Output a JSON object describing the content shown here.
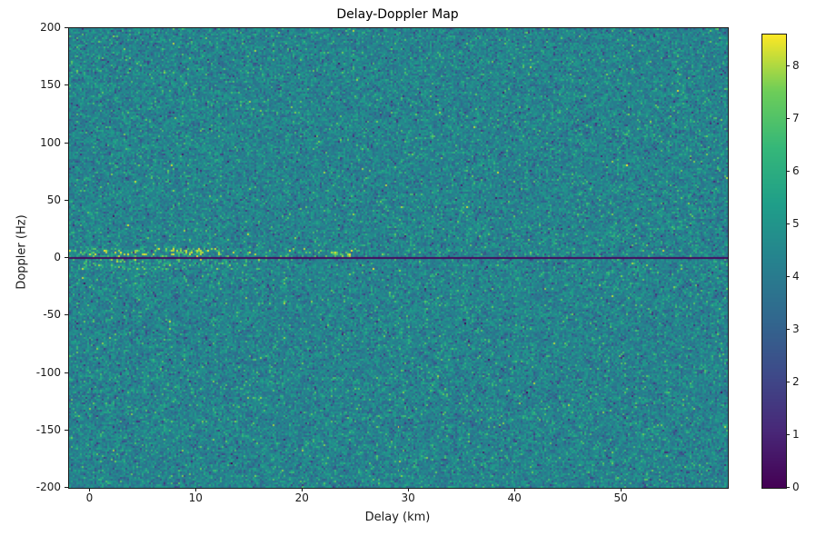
{
  "figure": {
    "title": "Delay-Doppler Map",
    "xlabel": "Delay (km)",
    "ylabel": "Doppler (Hz)"
  },
  "chart_data": {
    "type": "heatmap",
    "title": "Delay-Doppler Map",
    "xlabel": "Delay (km)",
    "ylabel": "Doppler (Hz)",
    "x_range": [
      -2,
      60
    ],
    "y_range": [
      -200,
      200
    ],
    "x_ticks": [
      0,
      10,
      20,
      30,
      40,
      50
    ],
    "y_ticks": [
      200,
      150,
      100,
      50,
      0,
      -50,
      -100,
      -150,
      -200
    ],
    "colorbar": {
      "min": 0,
      "max": 8.6,
      "ticks": [
        0,
        1,
        2,
        3,
        4,
        5,
        6,
        7,
        8
      ],
      "colormap": "viridis"
    },
    "background_noise": {
      "mean": 4.35,
      "std": 0.65,
      "description": "speckled teal/green clutter noise over whole map"
    },
    "features": [
      {
        "name": "zero-doppler-dark-line",
        "doppler_hz": 0,
        "delay_extent_km": [
          -2,
          60
        ],
        "value": 0.4
      },
      {
        "name": "near-zero-bright-returns-above",
        "doppler_band_hz": [
          1,
          9
        ],
        "delay_extent_km": [
          -2,
          26
        ],
        "peak_value": 8.6
      },
      {
        "name": "near-zero-bright-returns-below",
        "doppler_band_hz": [
          -11,
          -1
        ],
        "delay_extent_km": [
          -2,
          16
        ],
        "peak_value": 8.3
      },
      {
        "name": "bright-blob",
        "doppler_band_hz": [
          1,
          5
        ],
        "delay_extent_km": [
          22.5,
          24.5
        ],
        "peak_value": 8.6
      },
      {
        "name": "bright-blob",
        "doppler_band_hz": [
          2,
          8
        ],
        "delay_extent_km": [
          8,
          10.5
        ],
        "peak_value": 8.6
      }
    ],
    "seed": 42
  }
}
